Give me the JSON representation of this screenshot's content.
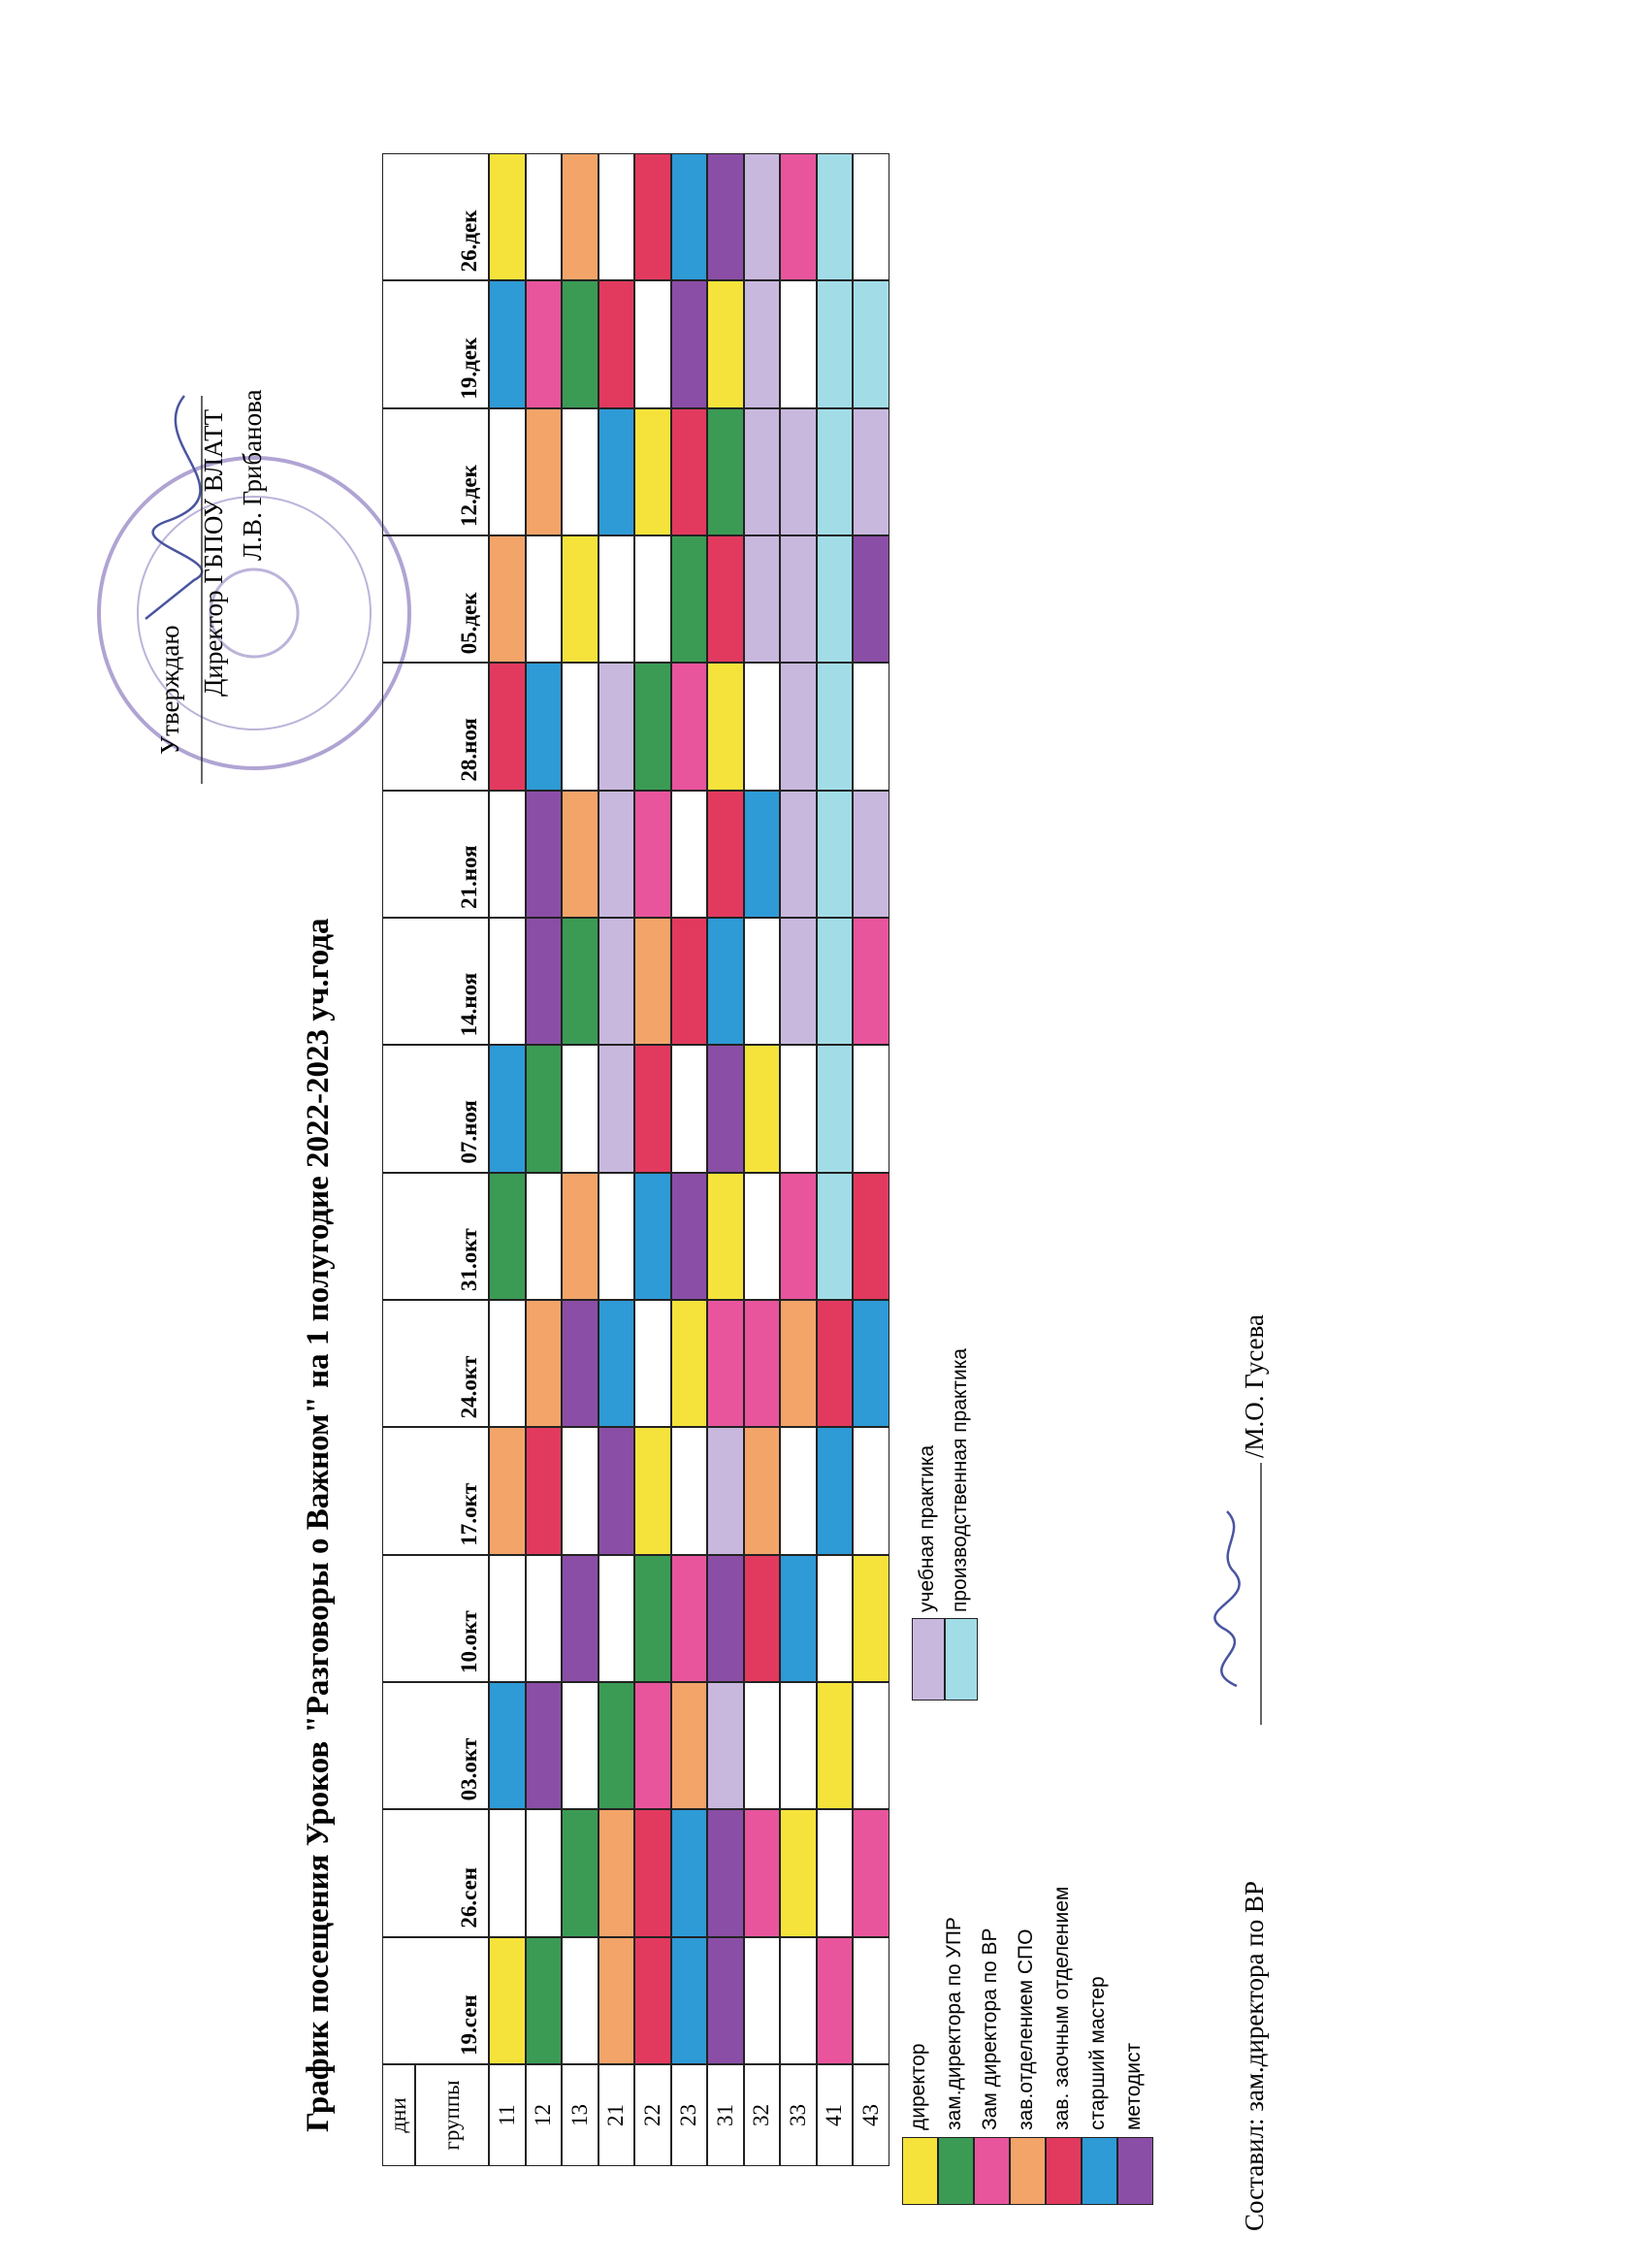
{
  "approval": {
    "lines": [
      "Утверждаю",
      "Директор ГБПОУ ВЛАТТ",
      "Л.В. Грибанова"
    ]
  },
  "title": "График посещения Уроков \"Разговоры о Важном\" на 1 полугодие 2022-2023 уч.года",
  "table": {
    "corner_top": "дни",
    "corner": "группы",
    "dates": [
      "19.сен",
      "26.сен",
      "03.окт",
      "10.окт",
      "17.окт",
      "24.окт",
      "31.окт",
      "07.ноя",
      "14.ноя",
      "21.ноя",
      "28.ноя",
      "05.дек",
      "12.дек",
      "19.дек",
      "26.дек"
    ],
    "groups": [
      "11",
      "12",
      "13",
      "21",
      "22",
      "23",
      "31",
      "32",
      "33",
      "41",
      "43"
    ],
    "cells": [
      [
        "#f5e33b",
        null,
        "#2e9ad6",
        null,
        "#f3a469",
        null,
        "#3b9b55",
        "#2e9ad6",
        null,
        null,
        "#e23a5f",
        "#f3a469",
        null,
        "#2e9ad6",
        "#f5e33b"
      ],
      [
        "#3b9b55",
        null,
        "#8b4ea6",
        null,
        "#e23a5f",
        "#f3a469",
        null,
        "#3b9b55",
        "#8b4ea6",
        "#8b4ea6",
        "#2e9ad6",
        null,
        "#f3a469",
        "#e8559d",
        null
      ],
      [
        null,
        "#3b9b55",
        null,
        "#8b4ea6",
        null,
        "#8b4ea6",
        "#f3a469",
        null,
        "#3b9b55",
        "#f3a469",
        null,
        "#f5e33b",
        null,
        "#3b9b55",
        "#f3a469"
      ],
      [
        "#f3a469",
        "#f3a469",
        "#3b9b55",
        null,
        "#8b4ea6",
        "#2e9ad6",
        null,
        "#c9b8de",
        "#c9b8de",
        "#c9b8de",
        "#c9b8de",
        null,
        "#2e9ad6",
        "#e23a5f",
        null
      ],
      [
        "#e23a5f",
        "#e23a5f",
        "#e8559d",
        "#3b9b55",
        "#f5e33b",
        null,
        "#2e9ad6",
        "#e23a5f",
        "#f3a469",
        "#e8559d",
        "#3b9b55",
        null,
        "#f5e33b",
        null,
        "#e23a5f"
      ],
      [
        "#2e9ad6",
        "#2e9ad6",
        "#f3a469",
        "#e8559d",
        null,
        "#f5e33b",
        "#8b4ea6",
        null,
        "#e23a5f",
        null,
        "#e8559d",
        "#3b9b55",
        "#e23a5f",
        "#8b4ea6",
        "#2e9ad6"
      ],
      [
        "#8b4ea6",
        "#8b4ea6",
        "#c9b8de",
        "#8b4ea6",
        "#c9b8de",
        "#e8559d",
        "#f5e33b",
        "#8b4ea6",
        "#2e9ad6",
        "#e23a5f",
        "#f5e33b",
        "#e23a5f",
        "#3b9b55",
        "#f5e33b",
        "#8b4ea6"
      ],
      [
        null,
        "#e8559d",
        null,
        "#e23a5f",
        "#f3a469",
        "#e8559d",
        null,
        "#f5e33b",
        null,
        "#2e9ad6",
        null,
        "#c9b8de",
        "#c9b8de",
        "#c9b8de",
        "#c9b8de"
      ],
      [
        null,
        "#f5e33b",
        null,
        "#2e9ad6",
        null,
        "#f3a469",
        "#e8559d",
        null,
        "#c9b8de",
        "#c9b8de",
        "#c9b8de",
        "#c9b8de",
        "#c9b8de",
        null,
        "#e8559d"
      ],
      [
        "#e8559d",
        null,
        "#f5e33b",
        null,
        "#2e9ad6",
        "#e23a5f",
        "#a2dde7",
        "#a2dde7",
        "#a2dde7",
        "#a2dde7",
        "#a2dde7",
        "#a2dde7",
        "#a2dde7",
        "#a2dde7",
        "#a2dde7"
      ],
      [
        null,
        "#e8559d",
        null,
        "#f5e33b",
        null,
        "#2e9ad6",
        "#e23a5f",
        null,
        "#e8559d",
        "#c9b8de",
        null,
        "#8b4ea6",
        "#c9b8de",
        "#a2dde7",
        null
      ]
    ]
  },
  "legend": {
    "items": [
      {
        "label": "директор",
        "color": "#f5e33b"
      },
      {
        "label": "зам.директора по УПР",
        "color": "#3b9b55"
      },
      {
        "label": "Зам директора по ВР",
        "color": "#e8559d"
      },
      {
        "label": "зав.отделением СПО",
        "color": "#f3a469"
      },
      {
        "label": "зав. заочным отделением",
        "color": "#e23a5f"
      },
      {
        "label": "старший мастер",
        "color": "#2e9ad6"
      },
      {
        "label": "методист",
        "color": "#8b4ea6"
      }
    ]
  },
  "practice_legend": {
    "items": [
      {
        "label": "учебная практика",
        "color": "#c9b8de"
      },
      {
        "label": "производственная практика",
        "color": "#a2dde7"
      }
    ]
  },
  "footer": {
    "composer": "Составил: зам.директора по ВР",
    "name": "/М.О. Гусева"
  }
}
